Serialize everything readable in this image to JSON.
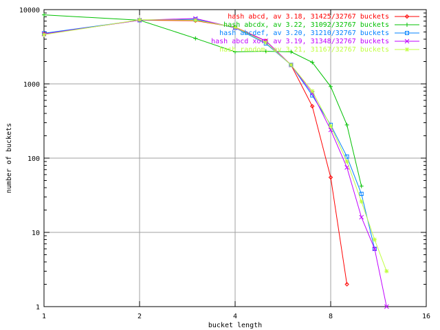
{
  "chart_data": {
    "type": "line",
    "title": "",
    "xlabel": "bucket length",
    "ylabel": "number of buckets",
    "x_scale": "log2",
    "y_scale": "log10",
    "xlim": [
      1,
      16
    ],
    "ylim": [
      1,
      10000
    ],
    "x_ticks": [
      1,
      2,
      4,
      8,
      16
    ],
    "x_tick_labels": [
      "1",
      "2",
      "4",
      "8",
      "16"
    ],
    "y_ticks": [
      1,
      10,
      100,
      1000,
      10000
    ],
    "y_tick_labels": [
      "1",
      "10",
      "100",
      "1000",
      "10000"
    ],
    "grid": true,
    "legend_position": "top-right",
    "series": [
      {
        "name": "hash abcd, av 3.18, 31425/32767 buckets",
        "color": "#ff0000",
        "marker": "diamond",
        "points": [
          [
            1,
            4700
          ],
          [
            2,
            7200
          ],
          [
            3,
            7100
          ],
          [
            4,
            5800
          ],
          [
            5,
            3800
          ],
          [
            6,
            1800
          ],
          [
            7,
            500
          ],
          [
            8,
            55
          ],
          [
            9,
            2
          ]
        ]
      },
      {
        "name": "hash abcdx, av 3.22, 31092/32767 buckets",
        "color": "#00c000",
        "marker": "plus",
        "points": [
          [
            1,
            8500
          ],
          [
            2,
            7200
          ],
          [
            3,
            4100
          ],
          [
            4,
            2700
          ],
          [
            5,
            2750
          ],
          [
            6,
            2700
          ],
          [
            7,
            1950
          ],
          [
            8,
            920
          ],
          [
            9,
            280
          ],
          [
            10,
            42
          ]
        ]
      },
      {
        "name": "hash abcdef, av 3.20, 31210/32767 buckets",
        "color": "#0080ff",
        "marker": "square",
        "points": [
          [
            1,
            4800
          ],
          [
            2,
            7200
          ],
          [
            3,
            7400
          ],
          [
            4,
            5700
          ],
          [
            5,
            3500
          ],
          [
            6,
            1800
          ],
          [
            7,
            700
          ],
          [
            8,
            280
          ],
          [
            9,
            105
          ],
          [
            10,
            33
          ],
          [
            11,
            6
          ]
        ]
      },
      {
        "name": "hash abcd xor, av 3.19, 31348/32767 buckets",
        "color": "#c000ff",
        "marker": "x",
        "points": [
          [
            1,
            4700
          ],
          [
            2,
            7200
          ],
          [
            3,
            7600
          ],
          [
            4,
            5700
          ],
          [
            5,
            3800
          ],
          [
            6,
            1800
          ],
          [
            7,
            750
          ],
          [
            8,
            240
          ],
          [
            9,
            75
          ],
          [
            10,
            16
          ],
          [
            11,
            6
          ],
          [
            12,
            1
          ]
        ]
      },
      {
        "name": "hash random, av 3.21, 31167/32767 buckets",
        "color": "#c0ff40",
        "marker": "star",
        "points": [
          [
            1,
            4600
          ],
          [
            2,
            7300
          ],
          [
            3,
            7200
          ],
          [
            4,
            5800
          ],
          [
            5,
            3600
          ],
          [
            6,
            1800
          ],
          [
            7,
            800
          ],
          [
            8,
            270
          ],
          [
            9,
            90
          ],
          [
            10,
            26
          ],
          [
            11,
            8
          ],
          [
            12,
            3
          ]
        ]
      }
    ]
  }
}
